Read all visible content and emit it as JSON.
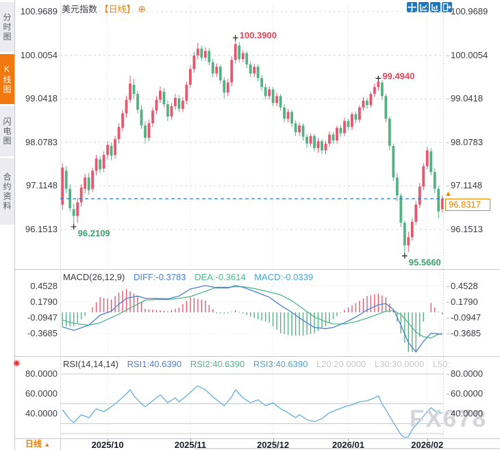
{
  "sidebar": {
    "tabs": [
      {
        "label": "分时图",
        "active": false
      },
      {
        "label": "K线图",
        "active": true
      },
      {
        "label": "闪电图",
        "active": false
      },
      {
        "label": "合约资料",
        "active": false
      }
    ]
  },
  "header": {
    "title": "美元指数",
    "period_tag": "【日线】",
    "plus_icon": "⊕"
  },
  "toolbar": {
    "icons": [
      "crosshair",
      "zoom-in",
      "zoom-out",
      "exit"
    ]
  },
  "bottom_bar": {
    "period_label": "日线",
    "arrow": "▲"
  },
  "watermark": "FX678",
  "price_box": {
    "value": "96.8317",
    "arrow": "▲"
  },
  "colors": {
    "up": "#e8566d",
    "down": "#54b183",
    "diff_line": "#4a7fd6",
    "dea_line": "#4db887",
    "rsi_line": "#62aeda",
    "accent_orange": "#f07d00",
    "last_price_line": "#1e7ee0",
    "grid": "#d4d4de",
    "level_line": "#c9c9d2",
    "ann_red": "#e54456",
    "ann_green": "#3aa06a"
  },
  "chart_data": {
    "type": "candlestick",
    "title": "美元指数",
    "interval": "日线",
    "x_axis": {
      "tick_labels": [
        "2025/10",
        "2025/11",
        "2025/12",
        "2026/01",
        "2026/02"
      ],
      "tick_indices": [
        12,
        34,
        56,
        76,
        97
      ]
    },
    "main": {
      "y_ticks": [
        "100.9689",
        "100.0054",
        "99.0418",
        "98.0783",
        "97.1148",
        "96.1513"
      ],
      "y_tick_values": [
        100.9689,
        100.0054,
        99.0418,
        98.0783,
        97.1148,
        96.1513
      ],
      "last_price": 96.8317,
      "last_price_label": "96.8317",
      "annotations": [
        {
          "index": 3,
          "side": "low",
          "text": "96.2109"
        },
        {
          "index": 46,
          "side": "high",
          "text": "100.3900"
        },
        {
          "index": 84,
          "side": "high",
          "text": "99.4940"
        },
        {
          "index": 91,
          "side": "low",
          "text": "95.5660"
        }
      ],
      "candles": [
        [
          96.7,
          97.62,
          96.58,
          97.52
        ],
        [
          97.45,
          97.55,
          96.95,
          97.05
        ],
        [
          97.05,
          97.15,
          96.55,
          96.62
        ],
        [
          96.6,
          96.72,
          96.2109,
          96.45
        ],
        [
          96.45,
          96.85,
          96.3,
          96.75
        ],
        [
          96.75,
          97.15,
          96.65,
          97.08
        ],
        [
          97.05,
          97.38,
          96.95,
          97.3
        ],
        [
          97.3,
          97.4,
          96.92,
          97.02
        ],
        [
          97.05,
          97.52,
          96.98,
          97.45
        ],
        [
          97.45,
          97.8,
          97.35,
          97.72
        ],
        [
          97.7,
          97.78,
          97.4,
          97.48
        ],
        [
          97.5,
          97.88,
          97.42,
          97.8
        ],
        [
          97.8,
          98.1,
          97.7,
          98.02
        ],
        [
          98.0,
          98.08,
          97.68,
          97.78
        ],
        [
          97.8,
          98.22,
          97.72,
          98.15
        ],
        [
          98.15,
          98.5,
          98.05,
          98.42
        ],
        [
          98.4,
          98.8,
          98.32,
          98.72
        ],
        [
          98.72,
          99.1,
          98.62,
          99.02
        ],
        [
          99.02,
          99.55,
          98.95,
          99.38
        ],
        [
          99.35,
          99.48,
          99.05,
          99.15
        ],
        [
          99.15,
          99.22,
          98.72,
          98.8
        ],
        [
          98.8,
          98.9,
          98.38,
          98.45
        ],
        [
          98.45,
          98.55,
          98.05,
          98.18
        ],
        [
          98.18,
          98.58,
          98.1,
          98.5
        ],
        [
          98.5,
          98.85,
          98.42,
          98.78
        ],
        [
          98.78,
          99.1,
          98.7,
          99.02
        ],
        [
          99.02,
          99.32,
          98.95,
          99.22
        ],
        [
          99.2,
          99.28,
          98.85,
          98.92
        ],
        [
          98.92,
          99.0,
          98.55,
          98.65
        ],
        [
          98.65,
          98.95,
          98.58,
          98.88
        ],
        [
          98.88,
          99.15,
          98.8,
          99.06
        ],
        [
          99.05,
          99.12,
          98.75,
          98.82
        ],
        [
          98.82,
          99.08,
          98.75,
          99.0
        ],
        [
          99.0,
          99.42,
          98.92,
          99.35
        ],
        [
          99.35,
          99.78,
          99.28,
          99.7
        ],
        [
          99.7,
          100.08,
          99.62,
          100.0
        ],
        [
          100.0,
          100.28,
          99.92,
          100.15
        ],
        [
          100.15,
          100.22,
          99.88,
          99.95
        ],
        [
          99.95,
          100.18,
          99.88,
          100.1
        ],
        [
          100.1,
          100.16,
          99.78,
          99.85
        ],
        [
          99.85,
          99.92,
          99.52,
          99.6
        ],
        [
          99.6,
          99.82,
          99.52,
          99.75
        ],
        [
          99.75,
          99.8,
          99.38,
          99.45
        ],
        [
          99.45,
          99.52,
          99.05,
          99.18
        ],
        [
          99.18,
          99.48,
          99.1,
          99.4
        ],
        [
          99.4,
          99.98,
          99.32,
          99.9
        ],
        [
          99.9,
          100.39,
          99.82,
          100.25
        ],
        [
          100.22,
          100.3,
          99.85,
          99.92
        ],
        [
          99.92,
          100.12,
          99.85,
          100.05
        ],
        [
          100.05,
          100.1,
          99.72,
          99.8
        ],
        [
          99.8,
          99.86,
          99.52,
          99.6
        ],
        [
          99.6,
          99.82,
          99.52,
          99.75
        ],
        [
          99.75,
          99.8,
          99.42,
          99.5
        ],
        [
          99.5,
          99.56,
          99.22,
          99.3
        ],
        [
          99.3,
          99.38,
          99.02,
          99.1
        ],
        [
          99.1,
          99.32,
          99.02,
          99.25
        ],
        [
          99.25,
          99.3,
          98.88,
          98.95
        ],
        [
          98.95,
          99.18,
          98.88,
          99.1
        ],
        [
          99.1,
          99.15,
          98.78,
          98.85
        ],
        [
          98.85,
          98.92,
          98.52,
          98.6
        ],
        [
          98.6,
          98.82,
          98.52,
          98.75
        ],
        [
          98.75,
          98.8,
          98.42,
          98.5
        ],
        [
          98.5,
          98.56,
          98.22,
          98.3
        ],
        [
          98.3,
          98.52,
          98.22,
          98.45
        ],
        [
          98.45,
          98.5,
          98.12,
          98.2
        ],
        [
          98.2,
          98.26,
          97.95,
          98.05
        ],
        [
          98.05,
          98.28,
          97.98,
          98.22
        ],
        [
          98.22,
          98.26,
          97.88,
          97.95
        ],
        [
          97.95,
          98.18,
          97.85,
          98.1
        ],
        [
          98.1,
          98.15,
          97.82,
          97.9
        ],
        [
          97.9,
          98.12,
          97.82,
          98.05
        ],
        [
          98.05,
          98.32,
          97.98,
          98.25
        ],
        [
          98.25,
          98.3,
          98.05,
          98.12
        ],
        [
          98.12,
          98.45,
          98.05,
          98.4
        ],
        [
          98.4,
          98.46,
          98.2,
          98.28
        ],
        [
          98.28,
          98.62,
          98.22,
          98.55
        ],
        [
          98.55,
          98.6,
          98.35,
          98.42
        ],
        [
          98.42,
          98.75,
          98.35,
          98.7
        ],
        [
          98.7,
          98.76,
          98.5,
          98.58
        ],
        [
          98.58,
          98.9,
          98.52,
          98.85
        ],
        [
          98.85,
          99.08,
          98.78,
          99.0
        ],
        [
          99.0,
          99.06,
          98.82,
          98.9
        ],
        [
          98.9,
          99.2,
          98.85,
          99.15
        ],
        [
          99.15,
          99.38,
          99.08,
          99.3
        ],
        [
          99.3,
          99.494,
          99.22,
          99.42
        ],
        [
          99.4,
          99.45,
          99.02,
          99.1
        ],
        [
          99.1,
          99.15,
          98.52,
          98.6
        ],
        [
          98.6,
          98.65,
          97.9,
          98.0
        ],
        [
          98.0,
          98.05,
          97.22,
          97.3
        ],
        [
          97.3,
          97.4,
          96.78,
          96.9
        ],
        [
          96.9,
          96.95,
          96.2,
          96.3
        ],
        [
          96.3,
          96.35,
          95.566,
          95.8
        ],
        [
          95.8,
          96.1,
          95.65,
          95.98
        ],
        [
          95.98,
          96.4,
          95.9,
          96.32
        ],
        [
          96.32,
          96.78,
          96.25,
          96.7
        ],
        [
          96.7,
          97.18,
          96.62,
          97.1
        ],
        [
          97.1,
          97.62,
          97.02,
          97.55
        ],
        [
          97.55,
          97.98,
          97.48,
          97.9
        ],
        [
          97.88,
          97.95,
          97.35,
          97.42
        ],
        [
          97.42,
          97.5,
          96.95,
          97.05
        ],
        [
          97.05,
          97.12,
          96.4,
          96.55
        ],
        [
          96.6,
          96.9,
          96.52,
          96.8317
        ]
      ]
    },
    "macd": {
      "label": "MACD(26,12,9)",
      "diff_label": "DIFF:-0.3783",
      "dea_label": "DEA:-0.3614",
      "macd_label": "MACD:-0.0339",
      "diff_value": -0.3783,
      "dea_value": -0.3614,
      "macd_value": -0.0339,
      "y_ticks": [
        "0.4528",
        "0.1790",
        "-0.0947",
        "-0.3685"
      ],
      "y_tick_values": [
        0.4528,
        0.179,
        -0.0947,
        -0.3685
      ],
      "keyframes": [
        [
          0,
          -0.25,
          -0.13
        ],
        [
          3,
          -0.31,
          -0.19
        ],
        [
          7,
          -0.22,
          -0.22
        ],
        [
          10,
          -0.05,
          -0.18
        ],
        [
          13,
          0.02,
          -0.09
        ],
        [
          15,
          0.14,
          -0.03
        ],
        [
          17,
          0.24,
          0.04
        ],
        [
          20,
          0.28,
          0.14
        ],
        [
          22,
          0.24,
          0.21
        ],
        [
          25,
          0.24,
          0.22
        ],
        [
          28,
          0.23,
          0.22
        ],
        [
          31,
          0.28,
          0.24
        ],
        [
          34,
          0.4,
          0.27
        ],
        [
          38,
          0.46,
          0.36
        ],
        [
          41,
          0.42,
          0.43
        ],
        [
          44,
          0.42,
          0.43
        ],
        [
          46,
          0.46,
          0.44
        ],
        [
          48,
          0.43,
          0.44
        ],
        [
          51,
          0.36,
          0.41
        ],
        [
          55,
          0.26,
          0.35
        ],
        [
          58,
          0.12,
          0.3
        ],
        [
          61,
          0.0,
          0.2
        ],
        [
          64,
          -0.14,
          0.06
        ],
        [
          67,
          -0.26,
          -0.08
        ],
        [
          70,
          -0.28,
          -0.16
        ],
        [
          72,
          -0.26,
          -0.2
        ],
        [
          75,
          -0.18,
          -0.2
        ],
        [
          78,
          -0.08,
          -0.16
        ],
        [
          81,
          0.04,
          -0.1
        ],
        [
          84,
          0.13,
          -0.03
        ],
        [
          86,
          0.15,
          0.02
        ],
        [
          88,
          0.05,
          0.03
        ],
        [
          90,
          -0.22,
          -0.04
        ],
        [
          92,
          -0.52,
          -0.18
        ],
        [
          94,
          -0.68,
          -0.34
        ],
        [
          96,
          -0.5,
          -0.42
        ],
        [
          98,
          -0.36,
          -0.44
        ],
        [
          100,
          -0.37,
          -0.375
        ],
        [
          101,
          -0.3783,
          -0.3614
        ]
      ]
    },
    "rsi": {
      "label": "RSI(14,14,14)",
      "rsi1_label": "RSI1:40.6390",
      "rsi2_label": "RSI2:40.6390",
      "rsi3_label": "RSI3:40.6390",
      "l20_label": "L20:20.0000",
      "l30_label": "L30:30.0000",
      "l50_label": "L50:",
      "rsi_value": 40.639,
      "y_ticks": [
        "80.0000",
        "60.0000",
        "40.0000"
      ],
      "y_tick_values": [
        80,
        60,
        40
      ],
      "levels": [
        80,
        50,
        30,
        20
      ],
      "keyframes": [
        [
          0,
          44
        ],
        [
          2,
          34
        ],
        [
          3,
          31
        ],
        [
          5,
          39
        ],
        [
          7,
          36
        ],
        [
          9,
          45
        ],
        [
          11,
          42
        ],
        [
          13,
          47
        ],
        [
          15,
          53
        ],
        [
          17,
          60
        ],
        [
          18,
          64
        ],
        [
          19,
          58
        ],
        [
          21,
          50
        ],
        [
          22,
          47
        ],
        [
          24,
          53
        ],
        [
          26,
          59
        ],
        [
          28,
          51
        ],
        [
          30,
          56
        ],
        [
          31,
          52
        ],
        [
          33,
          58
        ],
        [
          35,
          65
        ],
        [
          36,
          68
        ],
        [
          38,
          64
        ],
        [
          40,
          57
        ],
        [
          42,
          51
        ],
        [
          43,
          48
        ],
        [
          45,
          57
        ],
        [
          46,
          64
        ],
        [
          48,
          56
        ],
        [
          50,
          51
        ],
        [
          52,
          54
        ],
        [
          54,
          48
        ],
        [
          56,
          51
        ],
        [
          58,
          45
        ],
        [
          60,
          41
        ],
        [
          62,
          36
        ],
        [
          63,
          39
        ],
        [
          65,
          34
        ],
        [
          67,
          32
        ],
        [
          69,
          35
        ],
        [
          71,
          41
        ],
        [
          73,
          44
        ],
        [
          75,
          47
        ],
        [
          77,
          49
        ],
        [
          79,
          52
        ],
        [
          81,
          53
        ],
        [
          83,
          56
        ],
        [
          84,
          58
        ],
        [
          85,
          50
        ],
        [
          86,
          44
        ],
        [
          88,
          31
        ],
        [
          90,
          19
        ],
        [
          91,
          13
        ],
        [
          92,
          17
        ],
        [
          93,
          24
        ],
        [
          95,
          33
        ],
        [
          97,
          42
        ],
        [
          98,
          46
        ],
        [
          99,
          43
        ],
        [
          100,
          41
        ],
        [
          101,
          40.639
        ]
      ]
    }
  }
}
